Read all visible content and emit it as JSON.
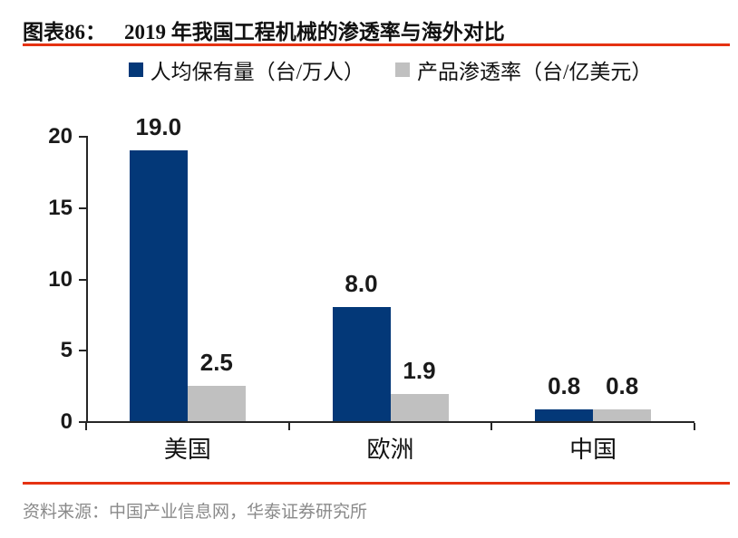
{
  "header": {
    "figure_label": "图表86：",
    "title": "2019 年我国工程机械的渗透率与海外对比"
  },
  "footer": {
    "source": "资料来源：中国产业信息网，华泰证券研究所"
  },
  "colors": {
    "primary_blue": "#033878",
    "secondary_gray": "#c0c0c0",
    "rule_red": "#e53212",
    "axis": "#262626",
    "source_text": "#8a8a8a"
  },
  "chart_data": {
    "type": "bar",
    "title": "2019 年我国工程机械的渗透率与海外对比",
    "categories": [
      "美国",
      "欧洲",
      "中国"
    ],
    "series": [
      {
        "name": "人均保有量（台/万人）",
        "color": "#033878",
        "values": [
          19.0,
          8.0,
          0.8
        ]
      },
      {
        "name": "产品渗透率（台/亿美元）",
        "color": "#c0c0c0",
        "values": [
          2.5,
          1.9,
          0.8
        ]
      }
    ],
    "value_labels": [
      [
        "19.0",
        "8.0",
        "0.8"
      ],
      [
        "2.5",
        "1.9",
        "0.8"
      ]
    ],
    "xlabel": "",
    "ylabel": "",
    "ylim": [
      0,
      20
    ],
    "yticks": [
      0,
      5,
      10,
      15,
      20
    ],
    "legend_position": "top",
    "grid": false
  }
}
